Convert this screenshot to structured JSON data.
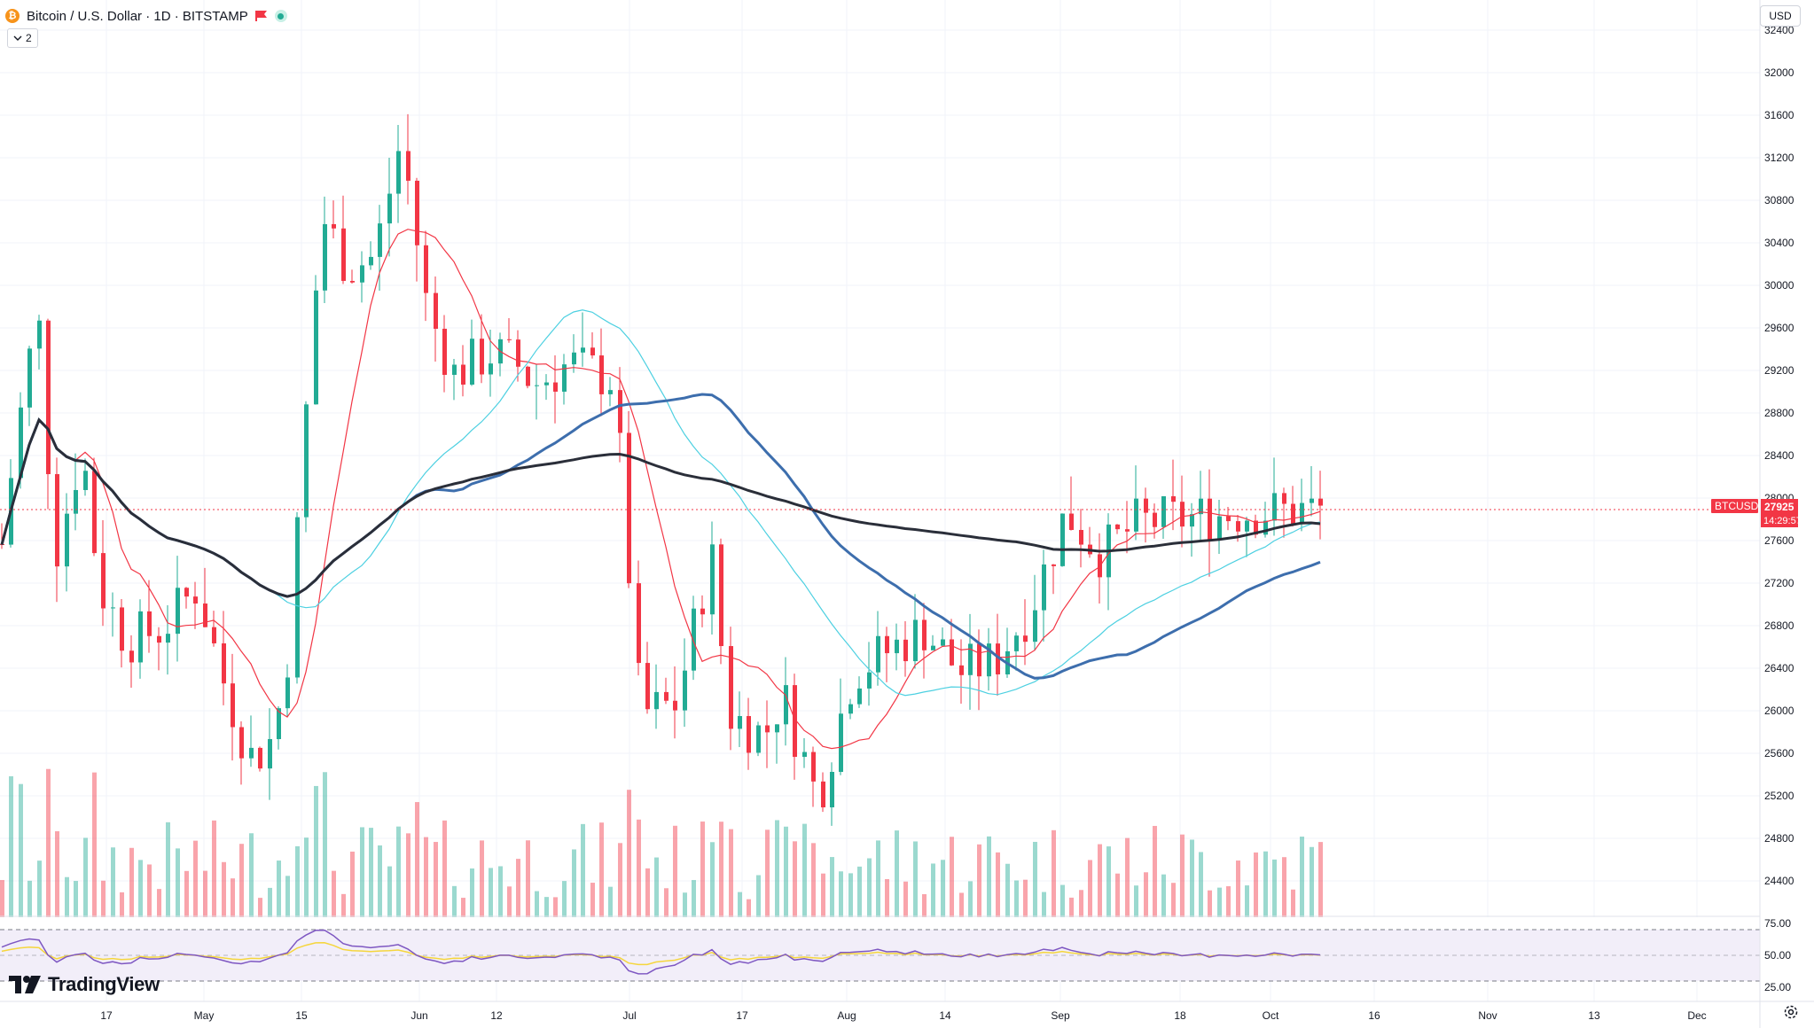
{
  "header": {
    "title": "Bitcoin / U.S. Dollar · 1D · BITSTAMP",
    "coin_icon_glyph": "₿",
    "indicator_count": "2",
    "currency": "USD"
  },
  "brand": {
    "name": "TradingView"
  },
  "price_axis": {
    "labels": [
      "32400",
      "32000",
      "31600",
      "31200",
      "30800",
      "30400",
      "30000",
      "29600",
      "29200",
      "28800",
      "28400",
      "28000",
      "27600",
      "27200",
      "26800",
      "26400",
      "26000",
      "25600",
      "25200",
      "24800",
      "24400"
    ]
  },
  "rsi_axis": {
    "labels": [
      "75.00",
      "50.00",
      "25.00"
    ]
  },
  "time_axis": {
    "labels": [
      "17",
      "May",
      "15",
      "Jun",
      "12",
      "Jul",
      "17",
      "Aug",
      "14",
      "Sep",
      "18",
      "Oct",
      "16",
      "Nov",
      "13",
      "Dec"
    ]
  },
  "last_price": {
    "symbol": "BTCUSD",
    "price": "27925",
    "countdown": "14:29:57",
    "value": 27925
  },
  "colors": {
    "up": "#22ab94",
    "down": "#f23645",
    "ma_fast": "#f23645",
    "ma_light": "#4dd0e1",
    "ma_mid": "#3d6ead",
    "ma_slow": "#2a2e39",
    "rsi": "#7e57c2",
    "rsi_ma": "#f5d63d"
  },
  "icons": {
    "coin": "bitcoin-icon",
    "flag": "flag-icon",
    "live": "live-dot-icon",
    "toggle": "chevron-down-icon",
    "settings": "gear-icon"
  }
}
